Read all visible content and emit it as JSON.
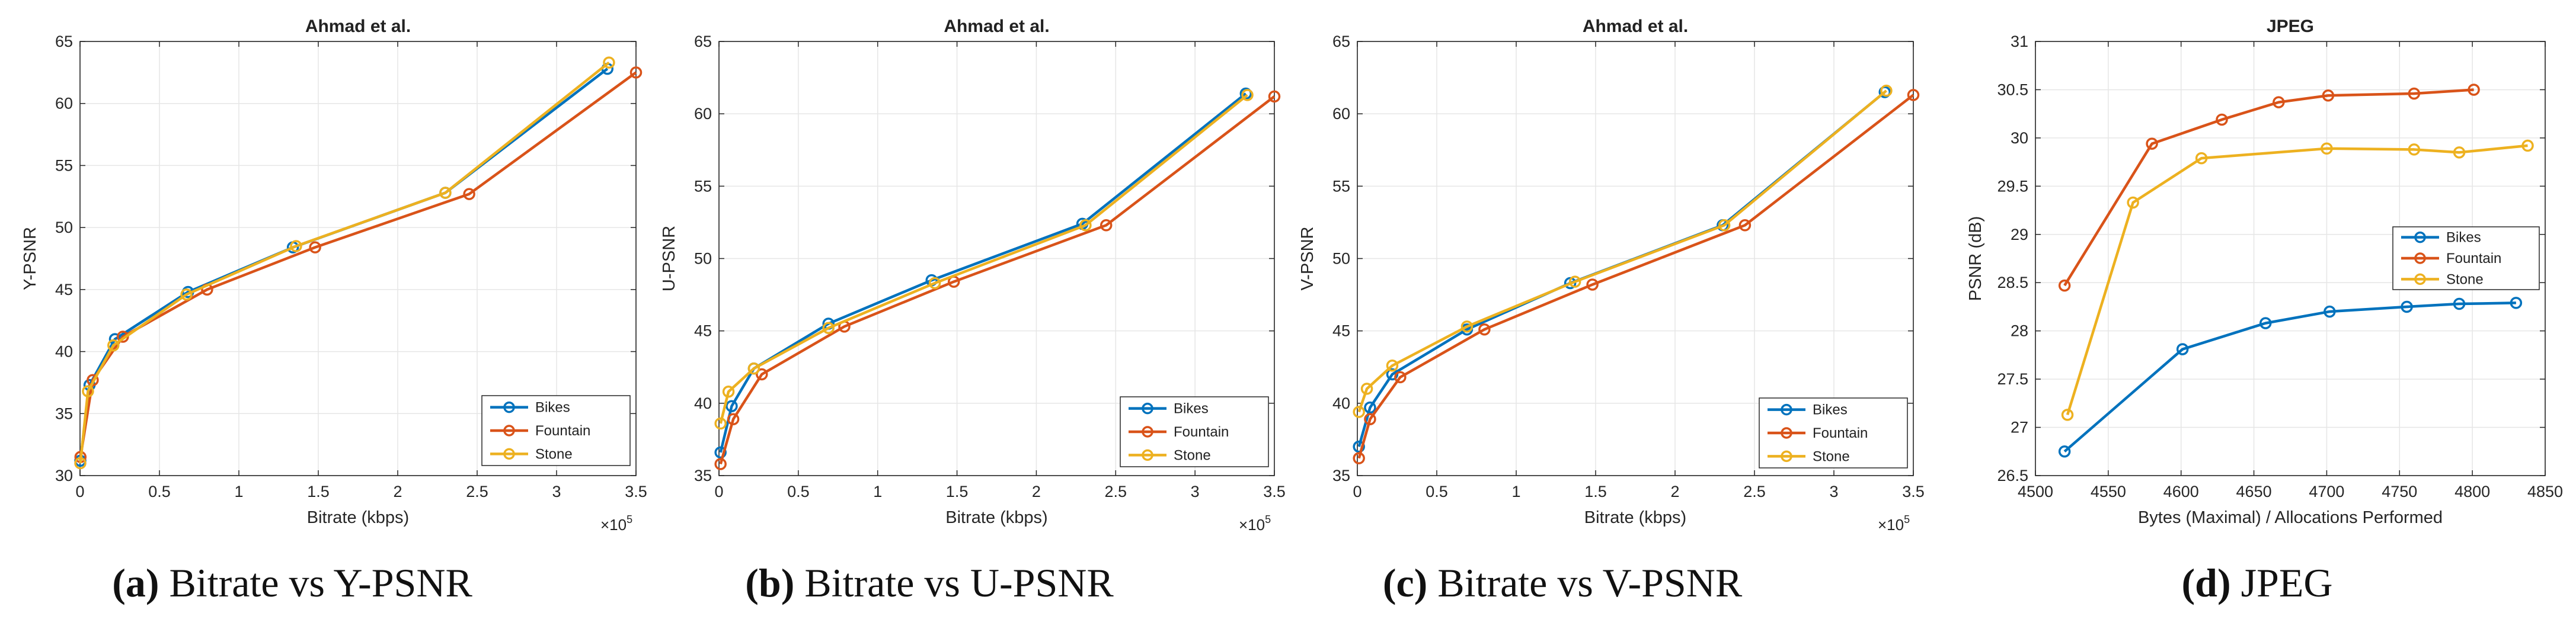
{
  "colors": {
    "Bikes": "#0072BD",
    "Fountain": "#D95319",
    "Stone": "#EDB120"
  },
  "chart_data": [
    {
      "type": "line",
      "title": "Ahmad et al.",
      "xlabel": "Bitrate (kbps)",
      "ylabel": "Y-PSNR",
      "xlim": [
        0,
        350000
      ],
      "ylim": [
        30,
        65
      ],
      "xticks": [
        0,
        50000,
        100000,
        150000,
        200000,
        250000,
        300000,
        350000
      ],
      "xtick_labels": [
        "0",
        "0.5",
        "1",
        "1.5",
        "2",
        "2.5",
        "3",
        "3.5"
      ],
      "yticks": [
        30,
        35,
        40,
        45,
        50,
        55,
        60,
        65
      ],
      "ytick_labels": [
        "30",
        "35",
        "40",
        "45",
        "50",
        "55",
        "60",
        "65"
      ],
      "exponent": {
        "base": "×10",
        "power": "5"
      },
      "legend": [
        "Bikes",
        "Fountain",
        "Stone"
      ],
      "legend_position": "bottom-right",
      "series": [
        {
          "name": "Bikes",
          "x": [
            200,
            6000,
            22000,
            68000,
            134000,
            230000,
            332000
          ],
          "y": [
            31.2,
            37.3,
            41.0,
            44.8,
            48.4,
            52.8,
            62.8
          ]
        },
        {
          "name": "Fountain",
          "x": [
            300,
            8000,
            27000,
            80000,
            148000,
            245000,
            350000
          ],
          "y": [
            31.5,
            37.7,
            41.2,
            45.0,
            48.4,
            52.7,
            62.5
          ]
        },
        {
          "name": "Stone",
          "x": [
            200,
            5000,
            21000,
            67000,
            136000,
            230000,
            333000
          ],
          "y": [
            31.0,
            36.8,
            40.5,
            44.6,
            48.5,
            52.8,
            63.3
          ]
        }
      ]
    },
    {
      "type": "line",
      "title": "Ahmad et al.",
      "xlabel": "Bitrate (kbps)",
      "ylabel": "U-PSNR",
      "xlim": [
        0,
        350000
      ],
      "ylim": [
        35,
        65
      ],
      "xticks": [
        0,
        50000,
        100000,
        150000,
        200000,
        250000,
        300000,
        350000
      ],
      "xtick_labels": [
        "0",
        "0.5",
        "1",
        "1.5",
        "2",
        "2.5",
        "3",
        "3.5"
      ],
      "yticks": [
        35,
        40,
        45,
        50,
        55,
        60,
        65
      ],
      "ytick_labels": [
        "35",
        "40",
        "45",
        "50",
        "55",
        "60",
        "65"
      ],
      "exponent": {
        "base": "×10",
        "power": "5"
      },
      "legend": [
        "Bikes",
        "Fountain",
        "Stone"
      ],
      "legend_position": "bottom-right",
      "series": [
        {
          "name": "Bikes",
          "x": [
            1000,
            8000,
            22000,
            69000,
            134000,
            229000,
            332000
          ],
          "y": [
            36.6,
            39.8,
            42.4,
            45.5,
            48.5,
            52.4,
            61.4
          ]
        },
        {
          "name": "Fountain",
          "x": [
            1000,
            9000,
            27000,
            79000,
            148000,
            244000,
            350000
          ],
          "y": [
            35.8,
            38.9,
            42.0,
            45.3,
            48.4,
            52.3,
            61.2
          ]
        },
        {
          "name": "Stone",
          "x": [
            1000,
            6000,
            22000,
            69000,
            136000,
            231000,
            333000
          ],
          "y": [
            38.6,
            40.8,
            42.4,
            45.2,
            48.3,
            52.3,
            61.3
          ]
        }
      ]
    },
    {
      "type": "line",
      "title": "Ahmad et al.",
      "xlabel": "Bitrate (kbps)",
      "ylabel": "V-PSNR",
      "xlim": [
        0,
        350000
      ],
      "ylim": [
        35,
        65
      ],
      "xticks": [
        0,
        50000,
        100000,
        150000,
        200000,
        250000,
        300000,
        350000
      ],
      "xtick_labels": [
        "0",
        "0.5",
        "1",
        "1.5",
        "2",
        "2.5",
        "3",
        "3.5"
      ],
      "yticks": [
        35,
        40,
        45,
        50,
        55,
        60,
        65
      ],
      "ytick_labels": [
        "35",
        "40",
        "45",
        "50",
        "55",
        "60",
        "65"
      ],
      "exponent": {
        "base": "×10",
        "power": "5"
      },
      "legend": [
        "Bikes",
        "Fountain",
        "Stone"
      ],
      "legend_position": "bottom-right",
      "series": [
        {
          "name": "Bikes",
          "x": [
            1000,
            8000,
            22000,
            69000,
            134000,
            230000,
            332000
          ],
          "y": [
            37.0,
            39.7,
            42.0,
            45.1,
            48.3,
            52.3,
            61.5
          ]
        },
        {
          "name": "Fountain",
          "x": [
            1000,
            8000,
            27000,
            80000,
            148000,
            244000,
            350000
          ],
          "y": [
            36.2,
            38.9,
            41.8,
            45.1,
            48.2,
            52.3,
            61.3
          ]
        },
        {
          "name": "Stone",
          "x": [
            1000,
            6000,
            22000,
            69000,
            137000,
            231000,
            333000
          ],
          "y": [
            39.4,
            41.0,
            42.6,
            45.3,
            48.4,
            52.3,
            61.6
          ]
        }
      ]
    },
    {
      "type": "line",
      "title": "JPEG",
      "xlabel": "Bytes (Maximal) / Allocations Performed",
      "ylabel": "PSNR (dB)",
      "xlim": [
        4500,
        4850
      ],
      "ylim": [
        26.5,
        31
      ],
      "xticks": [
        4500,
        4550,
        4600,
        4650,
        4700,
        4750,
        4800,
        4850
      ],
      "xtick_labels": [
        "4500",
        "4550",
        "4600",
        "4650",
        "4700",
        "4750",
        "4800",
        "4850"
      ],
      "yticks": [
        26.5,
        27,
        27.5,
        28,
        28.5,
        29,
        29.5,
        30,
        30.5,
        31
      ],
      "ytick_labels": [
        "26.5",
        "27",
        "27.5",
        "28",
        "28.5",
        "29",
        "29.5",
        "30",
        "30.5",
        "31"
      ],
      "legend": [
        "Bikes",
        "Fountain",
        "Stone"
      ],
      "legend_position": "right",
      "series": [
        {
          "name": "Bikes",
          "x": [
            4520,
            4601,
            4658,
            4702,
            4755,
            4791,
            4830
          ],
          "y": [
            26.75,
            27.81,
            28.08,
            28.2,
            28.25,
            28.28,
            28.29
          ]
        },
        {
          "name": "Fountain",
          "x": [
            4520,
            4580,
            4628,
            4667,
            4701,
            4760,
            4801
          ],
          "y": [
            28.47,
            29.94,
            30.19,
            30.37,
            30.44,
            30.46,
            30.5
          ]
        },
        {
          "name": "Stone",
          "x": [
            4522,
            4567,
            4614,
            4700,
            4760,
            4791,
            4838
          ],
          "y": [
            27.13,
            29.33,
            29.79,
            29.89,
            29.88,
            29.85,
            29.92
          ]
        }
      ]
    }
  ],
  "captions": [
    {
      "label": "(a)",
      "text": " Bitrate vs Y-PSNR"
    },
    {
      "label": "(b)",
      "text": " Bitrate vs U-PSNR"
    },
    {
      "label": "(c)",
      "text": " Bitrate vs V-PSNR"
    },
    {
      "label": "(d)",
      "text": " JPEG"
    }
  ]
}
